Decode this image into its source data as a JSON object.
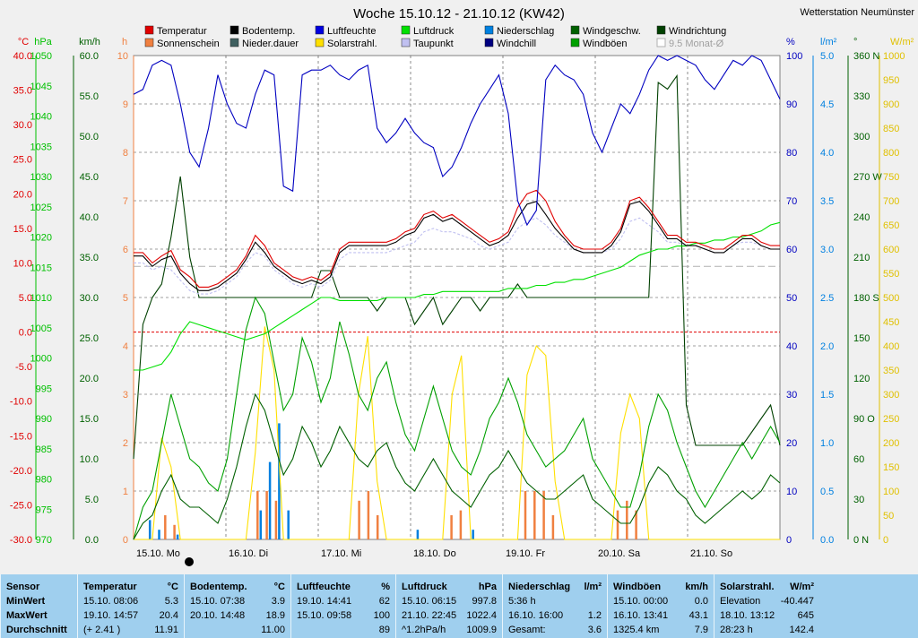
{
  "chart_data": {
    "type": "line",
    "title": "Woche 15.10.12 - 21.10.12 (KW42)",
    "station": "Wetterstation Neumünster",
    "legend": [
      {
        "name": "Temperatur",
        "color": "#e00000"
      },
      {
        "name": "Bodentemp.",
        "color": "#000000"
      },
      {
        "name": "Luftfeuchte",
        "color": "#0000e0"
      },
      {
        "name": "Luftdruck",
        "color": "#00e000"
      },
      {
        "name": "Niederschlag",
        "color": "#0080e0"
      },
      {
        "name": "Windgeschw.",
        "color": "#006000"
      },
      {
        "name": "Windrichtung",
        "color": "#004000"
      },
      {
        "name": "Sonnenschein",
        "color": "#f08040"
      },
      {
        "name": "Nieder.dauer",
        "color": "#406060"
      },
      {
        "name": "Solarstrahl.",
        "color": "#ffe000"
      },
      {
        "name": "Taupunkt",
        "color": "#c0c0f0"
      },
      {
        "name": "Windchill",
        "color": "#000080"
      },
      {
        "name": "Windböen",
        "color": "#00a000"
      },
      {
        "name": "9.5 Monat-Ø",
        "color": "#b0b0b0"
      }
    ],
    "axes_left": [
      {
        "unit": "°C",
        "color": "#e00000",
        "ticks": [
          "40.0",
          "35.0",
          "30.0",
          "25.0",
          "20.0",
          "15.0",
          "10.0",
          "5.0",
          "0.0",
          "-5.0",
          "-10.0",
          "-15.0",
          "-20.0",
          "-25.0",
          "-30.0"
        ]
      },
      {
        "unit": "hPa",
        "color": "#00c000",
        "ticks": [
          "1050",
          "1045",
          "1040",
          "1035",
          "1030",
          "1025",
          "1020",
          "1015",
          "1010",
          "1005",
          "1000",
          "995",
          "990",
          "985",
          "980",
          "975",
          "970"
        ]
      },
      {
        "unit": "km/h",
        "color": "#006000",
        "ticks": [
          "60.0",
          "55.0",
          "50.0",
          "45.0",
          "40.0",
          "35.0",
          "30.0",
          "25.0",
          "20.0",
          "15.0",
          "10.0",
          "5.0",
          "0.0"
        ]
      },
      {
        "unit": "h",
        "color": "#f08040",
        "ticks": [
          "10",
          "9",
          "8",
          "7",
          "6",
          "5",
          "4",
          "3",
          "2",
          "1",
          "0"
        ]
      }
    ],
    "axes_right": [
      {
        "unit": "%",
        "color": "#0000c0",
        "ticks": [
          "100",
          "90",
          "80",
          "70",
          "60",
          "50",
          "40",
          "30",
          "20",
          "10",
          "0"
        ]
      },
      {
        "unit": "l/m²",
        "color": "#0080e0",
        "ticks": [
          "5.0",
          "4.5",
          "4.0",
          "3.5",
          "3.0",
          "2.5",
          "2.0",
          "1.5",
          "1.0",
          "0.5",
          "0.0"
        ]
      },
      {
        "unit": "°",
        "color": "#006000",
        "ticks": [
          "360 N",
          "330",
          "300",
          "270 W",
          "240",
          "210",
          "180 S",
          "150",
          "120",
          "90 O",
          "60",
          "30",
          "0 N"
        ]
      },
      {
        "unit": "W/m²",
        "color": "#e0c000",
        "ticks": [
          "1000",
          "950",
          "900",
          "850",
          "800",
          "750",
          "700",
          "650",
          "600",
          "550",
          "500",
          "450",
          "400",
          "350",
          "300",
          "250",
          "200",
          "150",
          "100",
          "50",
          "0"
        ]
      }
    ],
    "x_labels": [
      "15.10. Mo",
      "16.10. Di",
      "17.10. Mi",
      "18.10. Do",
      "19.10. Fr",
      "20.10. Sa",
      "21.10. So"
    ],
    "ylim_temp": [
      -30,
      40
    ],
    "ylim_humidity": [
      0,
      100
    ],
    "ylim_pressure": [
      970,
      1050
    ],
    "ylim_wind": [
      0,
      60
    ],
    "ylim_solar": [
      0,
      1000
    ],
    "ylim_rain": [
      0,
      5
    ],
    "ylim_direction": [
      0,
      360
    ],
    "series": [
      {
        "name": "Temperatur",
        "color": "#e00000",
        "values": [
          11.5,
          11.5,
          10,
          11,
          11.8,
          9,
          8,
          6.5,
          6.5,
          7,
          8,
          9,
          11,
          14,
          12.5,
          10,
          9,
          8,
          7.5,
          8,
          7.5,
          8.5,
          12,
          13,
          13,
          13,
          13,
          13,
          13.5,
          14.5,
          15,
          17,
          17.5,
          16.5,
          17,
          16,
          15,
          14,
          13,
          13.5,
          14.5,
          18,
          20,
          20.5,
          19,
          16,
          14,
          12.5,
          12,
          12,
          12,
          13,
          15,
          19,
          19.5,
          18,
          16,
          14,
          14,
          13,
          13,
          12.5,
          12,
          12,
          13,
          14,
          14,
          13,
          12.5,
          12.5
        ]
      },
      {
        "name": "Bodentemp.",
        "color": "#000000",
        "values": [
          11,
          11,
          9.5,
          10.5,
          11,
          8.5,
          7,
          6,
          6,
          6.5,
          7.5,
          8.5,
          10.5,
          13,
          11.5,
          9.5,
          8.5,
          7.5,
          7,
          7.5,
          7,
          8,
          11.5,
          12.5,
          12.5,
          12.5,
          12.5,
          12.5,
          13,
          14,
          14.5,
          16.5,
          17,
          16,
          16.5,
          15.5,
          14.5,
          13.5,
          12.5,
          13,
          14,
          16.5,
          18.5,
          18.9,
          17,
          15,
          13.5,
          12,
          11.5,
          11.5,
          11.5,
          12.5,
          14.5,
          18.5,
          18.9,
          17.5,
          15.5,
          13.5,
          13.5,
          12.5,
          12.5,
          12,
          11.5,
          11.5,
          12.5,
          13.5,
          13.5,
          12.5,
          12,
          12
        ]
      },
      {
        "name": "Taupunkt",
        "color": "#c0c0f0",
        "values": [
          10,
          10,
          9,
          9.5,
          9,
          7.5,
          6,
          5.5,
          5.5,
          6,
          7,
          8,
          10,
          11.5,
          11,
          9,
          8,
          7,
          6.5,
          7,
          6.5,
          7.5,
          10.5,
          11.5,
          11.5,
          11.5,
          11.5,
          11.5,
          12,
          12.5,
          13,
          14.5,
          15,
          14.5,
          14.5,
          14,
          13.5,
          12.5,
          12,
          12.5,
          13,
          15,
          16,
          16.5,
          15.5,
          14,
          13,
          12,
          11.5,
          11.5,
          11.5,
          12,
          13.5,
          16,
          16.5,
          15.5,
          14.5,
          13,
          13,
          12.5,
          12.5,
          12,
          11.5,
          11.5,
          12.5,
          13,
          13,
          12.5,
          12,
          12
        ]
      },
      {
        "name": "Luftfeuchte",
        "color": "#0000c0",
        "values": [
          92,
          93,
          98,
          99,
          98,
          90,
          80,
          77,
          85,
          96,
          90,
          86,
          85,
          92,
          97,
          96,
          73,
          72,
          96,
          97,
          97,
          98,
          96,
          95,
          97,
          98,
          85,
          82,
          84,
          87,
          84,
          82,
          81,
          75,
          77,
          81,
          86,
          90,
          93,
          96,
          88,
          70,
          65,
          68,
          95,
          98,
          96,
          95,
          92,
          84,
          80,
          85,
          90,
          88,
          92,
          97,
          100,
          99,
          100,
          99,
          98,
          95,
          93,
          96,
          99,
          98,
          100,
          99,
          95,
          91
        ]
      },
      {
        "name": "Luftdruck",
        "color": "#00e000",
        "values": [
          998,
          998,
          998.5,
          999,
          1001,
          1004,
          1006,
          1005.5,
          1005,
          1004.5,
          1004,
          1003.5,
          1003,
          1003.5,
          1004,
          1005,
          1006,
          1007,
          1008,
          1009,
          1010,
          1010,
          1009.5,
          1009.5,
          1009.5,
          1009.5,
          1009.5,
          1010,
          1010,
          1010,
          1010,
          1010.5,
          1010.5,
          1011,
          1011,
          1011,
          1011,
          1011,
          1011,
          1011,
          1011.5,
          1011.5,
          1011.5,
          1012,
          1012,
          1012.5,
          1012.5,
          1013,
          1013,
          1013.5,
          1014,
          1014.5,
          1015,
          1016,
          1017,
          1017.5,
          1018,
          1018,
          1018.5,
          1018.5,
          1019,
          1019,
          1019.5,
          1019.5,
          1020,
          1020,
          1020.5,
          1021,
          1022,
          1022.4
        ]
      },
      {
        "name": "Windgeschw.",
        "color": "#006000",
        "values": [
          0,
          2,
          3,
          6,
          8,
          5,
          4,
          4,
          3,
          2,
          5,
          9,
          14,
          18,
          16,
          12,
          8,
          10,
          14,
          12,
          9,
          11,
          14,
          12,
          10,
          9,
          11,
          12,
          9,
          7,
          6,
          8,
          10,
          8,
          6,
          5,
          4,
          6,
          8,
          9,
          11,
          9,
          7,
          6,
          5,
          5,
          6,
          7,
          8,
          5,
          4,
          3,
          2,
          2,
          4,
          7,
          9,
          8,
          6,
          5,
          3,
          2,
          3,
          4,
          5,
          6,
          5,
          6,
          8,
          7
        ]
      },
      {
        "name": "Windböen",
        "color": "#00a000",
        "values": [
          0,
          4,
          6,
          12,
          18,
          14,
          10,
          9,
          7,
          6,
          10,
          18,
          26,
          30,
          28,
          22,
          16,
          18,
          25,
          22,
          17,
          20,
          27,
          23,
          18,
          16,
          20,
          22,
          17,
          13,
          11,
          15,
          19,
          15,
          11,
          9,
          8,
          11,
          15,
          17,
          20,
          17,
          13,
          11,
          9,
          10,
          11,
          13,
          15,
          10,
          8,
          6,
          4,
          4,
          8,
          14,
          18,
          16,
          12,
          9,
          6,
          4,
          6,
          8,
          10,
          12,
          10,
          12,
          14,
          12
        ]
      },
      {
        "name": "Solarstrahl.",
        "color": "#ffe000",
        "values": [
          0,
          0,
          0,
          210,
          150,
          0,
          0,
          0,
          0,
          0,
          0,
          0,
          0,
          180,
          440,
          350,
          0,
          0,
          0,
          0,
          0,
          0,
          0,
          0,
          300,
          420,
          120,
          0,
          0,
          0,
          0,
          0,
          0,
          0,
          300,
          380,
          0,
          0,
          0,
          0,
          0,
          0,
          340,
          400,
          380,
          120,
          0,
          0,
          0,
          0,
          0,
          0,
          220,
          300,
          250,
          0,
          0,
          0,
          0,
          0,
          0,
          0,
          0,
          0,
          0,
          0,
          0,
          0,
          0,
          0
        ]
      },
      {
        "name": "Windrichtung",
        "color": "#004000",
        "values": [
          60,
          160,
          180,
          190,
          225,
          270,
          210,
          180,
          180,
          180,
          180,
          180,
          180,
          180,
          180,
          180,
          180,
          180,
          180,
          180,
          200,
          200,
          180,
          180,
          180,
          180,
          170,
          180,
          180,
          180,
          160,
          170,
          180,
          160,
          170,
          180,
          180,
          170,
          180,
          180,
          180,
          190,
          180,
          180,
          180,
          180,
          180,
          180,
          180,
          180,
          180,
          180,
          180,
          180,
          180,
          180,
          340,
          335,
          345,
          100,
          70,
          70,
          70,
          70,
          70,
          70,
          80,
          90,
          100,
          70
        ]
      }
    ],
    "rain_bars": [
      0,
      0.2,
      0.1,
      0,
      0.05,
      0,
      0,
      0,
      0,
      0,
      0,
      0,
      0,
      0.3,
      0.8,
      1.2,
      0.3,
      0,
      0,
      0,
      0,
      0,
      0,
      0,
      0,
      0,
      0,
      0,
      0,
      0,
      0.1,
      0,
      0,
      0,
      0,
      0,
      0.1,
      0,
      0,
      0,
      0,
      0,
      0,
      0,
      0,
      0,
      0,
      0,
      0,
      0,
      0,
      0,
      0,
      0,
      0,
      0,
      0,
      0,
      0,
      0,
      0,
      0,
      0,
      0,
      0,
      0,
      0,
      0,
      0,
      0
    ],
    "sunshine_bars": [
      0,
      0,
      0,
      0.5,
      0.3,
      0,
      0,
      0,
      0,
      0,
      0,
      0,
      0,
      1,
      1,
      0.8,
      0,
      0,
      0,
      0,
      0,
      0,
      0,
      0,
      0.8,
      1,
      0.5,
      0,
      0,
      0,
      0,
      0,
      0,
      0,
      0.5,
      0.6,
      0,
      0,
      0,
      0,
      0,
      0,
      1,
      1,
      1,
      0.5,
      0,
      0,
      0,
      0,
      0,
      0,
      0.6,
      0.8,
      0.6,
      0,
      0,
      0,
      0,
      0,
      0,
      0,
      0,
      0,
      0,
      0,
      0,
      0,
      0,
      0
    ],
    "dashed_reference": {
      "name": "9.5 Monat-Ø",
      "value": 9.5
    }
  },
  "stats_table": [
    {
      "header": [
        "Sensor",
        ""
      ],
      "rows": [
        [
          "MinWert",
          ""
        ],
        [
          "MaxWert",
          ""
        ],
        [
          "Durchschnitt",
          ""
        ]
      ]
    },
    {
      "header": [
        "Temperatur",
        "°C"
      ],
      "rows": [
        [
          "15.10.  08:06",
          "5.3"
        ],
        [
          "19.10.  14:57",
          "20.4"
        ],
        [
          "(+ 2.41 )",
          "11.91"
        ]
      ]
    },
    {
      "header": [
        "Bodentemp.",
        "°C"
      ],
      "rows": [
        [
          "15.10.  07:38",
          "3.9"
        ],
        [
          "20.10.  14:48",
          "18.9"
        ],
        [
          "",
          "11.00"
        ]
      ]
    },
    {
      "header": [
        "Luftfeuchte",
        "%"
      ],
      "rows": [
        [
          "19.10.  14:41",
          "62"
        ],
        [
          "15.10.  09:58",
          "100"
        ],
        [
          "",
          "89"
        ]
      ]
    },
    {
      "header": [
        "Luftdruck",
        "hPa"
      ],
      "rows": [
        [
          "15.10.  06:15",
          "997.8"
        ],
        [
          "21.10.  22:45",
          "1022.4"
        ],
        [
          "^1.2hPa/h",
          "1009.9"
        ]
      ]
    },
    {
      "header": [
        "Niederschlag",
        "l/m²"
      ],
      "rows": [
        [
          "5:36 h",
          ""
        ],
        [
          "16.10.  16:00",
          "1.2"
        ],
        [
          "Gesamt:",
          "3.6"
        ]
      ]
    },
    {
      "header": [
        "Windböen",
        "km/h"
      ],
      "rows": [
        [
          "15.10.  00:00",
          "0.0"
        ],
        [
          "16.10.  13:41",
          "43.1"
        ],
        [
          "1325.4 km",
          "7.9"
        ]
      ]
    },
    {
      "header": [
        "Solarstrahl.",
        "W/m²"
      ],
      "rows": [
        [
          "Elevation",
          "-40.447"
        ],
        [
          "18.10.  13:12",
          "645"
        ],
        [
          "28:23 h",
          "142.4"
        ]
      ]
    }
  ]
}
